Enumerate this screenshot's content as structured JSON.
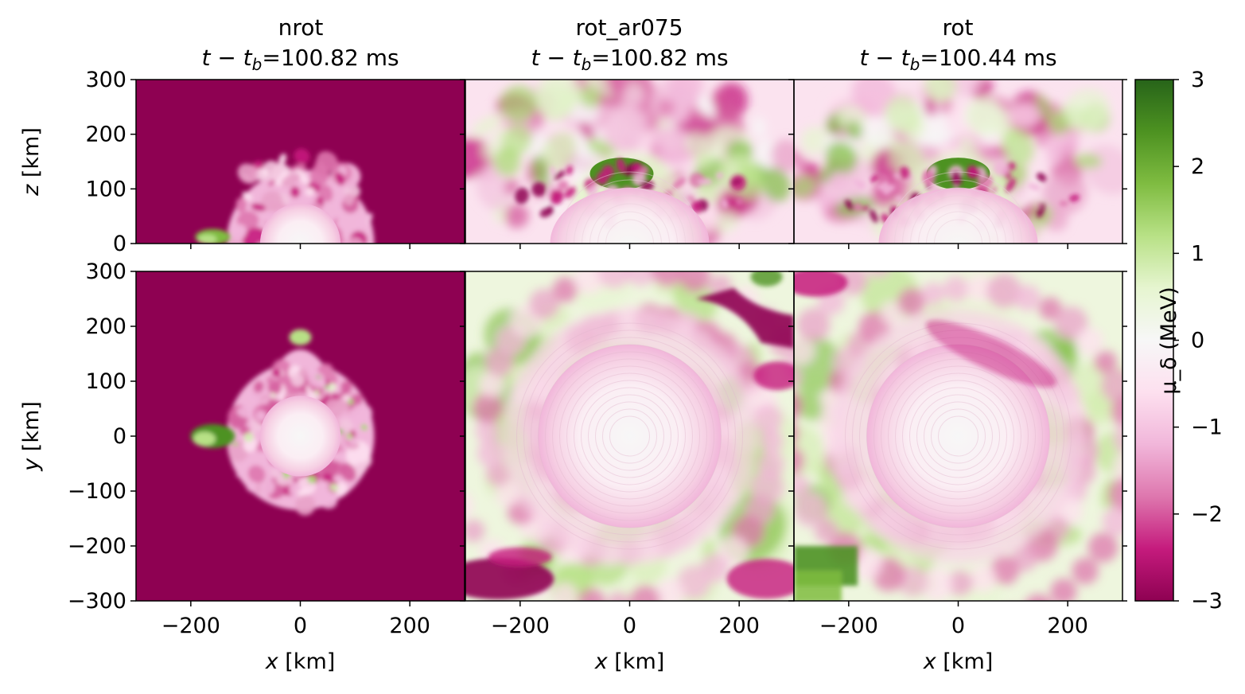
{
  "chart_data": {
    "type": "heatmap",
    "colormap": "PiYG",
    "colorbar": {
      "label": "μ_δ (MeV)",
      "range": [
        -3,
        3
      ],
      "ticks": [
        "3",
        "2",
        "1",
        "0",
        "−1",
        "−2",
        "−3"
      ],
      "tick_values": [
        3,
        2,
        1,
        0,
        -1,
        -2,
        -3
      ]
    },
    "columns": [
      {
        "name": "nrot",
        "time_prefix": "t − t",
        "time_sub": "b",
        "time_value": "=100.82 ms"
      },
      {
        "name": "rot_ar075",
        "time_prefix": "t − t",
        "time_sub": "b",
        "time_value": "=100.82 ms"
      },
      {
        "name": "rot",
        "time_prefix": "t − t",
        "time_sub": "b",
        "time_value": "=100.44 ms"
      }
    ],
    "rows": [
      {
        "plane": "x-z",
        "ylabel_var": "z",
        "ylabel_unit": " [km]",
        "ylim": [
          0,
          300
        ],
        "yticks": [
          "300",
          "200",
          "100",
          "0"
        ],
        "ytick_values": [
          300,
          200,
          100,
          0
        ]
      },
      {
        "plane": "x-y",
        "ylabel_var": "y",
        "ylabel_unit": " [km]",
        "ylim": [
          -300,
          300
        ],
        "yticks": [
          "300",
          "200",
          "100",
          "0",
          "−100",
          "−200",
          "−300"
        ],
        "ytick_values": [
          300,
          200,
          100,
          0,
          -100,
          -200,
          -300
        ]
      }
    ],
    "xaxis": {
      "label_var": "x",
      "label_unit": " [km]",
      "xlim": [
        -300,
        300
      ],
      "xticks": [
        "−200",
        "0",
        "200"
      ],
      "xtick_values": [
        -200,
        0,
        200
      ]
    },
    "background_value": -3,
    "core_radius_km": 70,
    "shock_radius_km": 135
  }
}
